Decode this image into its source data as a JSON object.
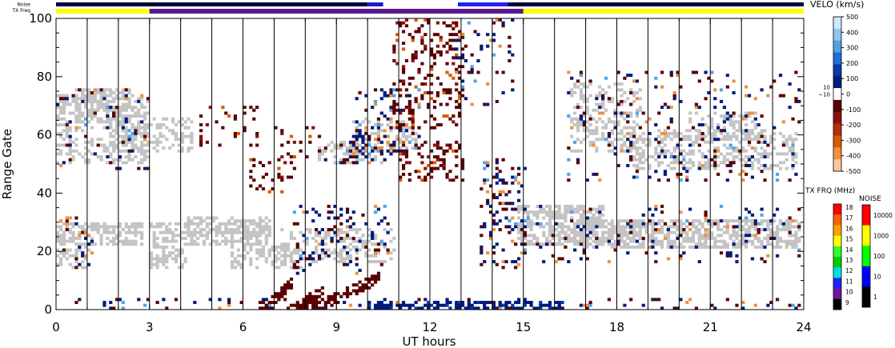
{
  "chart_data": {
    "type": "heatmap",
    "xlabel": "UT hours",
    "ylabel": "Range Gate",
    "xlim": [
      0,
      24
    ],
    "ylim": [
      0,
      100
    ],
    "x_ticks": [
      "0",
      "3",
      "6",
      "9",
      "12",
      "15",
      "18",
      "21",
      "24"
    ],
    "y_ticks": [
      "0",
      "20",
      "40",
      "60",
      "80",
      "100"
    ],
    "hour_lines": [
      1,
      2,
      3,
      4,
      5,
      6,
      7,
      8,
      9,
      10,
      11,
      12,
      13,
      14,
      15,
      16,
      17,
      18,
      19,
      20,
      21,
      22,
      23
    ],
    "top_strips": {
      "noise_label": "Noise",
      "txfreq_label": "TX Freq"
    },
    "tx_freq_strip": [
      {
        "start": 0,
        "end": 3,
        "color": "#ffff00"
      },
      {
        "start": 3,
        "end": 15,
        "color": "#5a188c"
      },
      {
        "start": 15,
        "end": 24,
        "color": "#ffff00"
      }
    ],
    "noise_strip": [
      {
        "start": 0,
        "end": 10,
        "color": "#00003c"
      },
      {
        "start": 10,
        "end": 10.5,
        "color": "#1c1cd0"
      },
      {
        "start": 12.9,
        "end": 14.5,
        "color": "#2222ee"
      },
      {
        "start": 14.5,
        "end": 24,
        "color": "#00003c"
      }
    ],
    "ground_scatter_color": "#c4c4c4",
    "ground_scatter_bands": [
      {
        "t0": 0.0,
        "t1": 2.8,
        "g0": 22,
        "g1": 30,
        "density": 0.6
      },
      {
        "t0": 0.0,
        "t1": 1.0,
        "g0": 14,
        "g1": 22,
        "density": 0.35
      },
      {
        "t0": 0.0,
        "t1": 3.0,
        "g0": 50,
        "g1": 74,
        "density": 0.35
      },
      {
        "t0": 0.6,
        "t1": 2.4,
        "g0": 64,
        "g1": 76,
        "density": 0.55
      },
      {
        "t0": 1.6,
        "t1": 4.4,
        "g0": 54,
        "g1": 66,
        "density": 0.35
      },
      {
        "t0": 3.0,
        "t1": 4.2,
        "g0": 14,
        "g1": 30,
        "density": 0.55
      },
      {
        "t0": 4.2,
        "t1": 6.8,
        "g0": 22,
        "g1": 32,
        "density": 0.55
      },
      {
        "t0": 5.6,
        "t1": 7.8,
        "g0": 14,
        "g1": 22,
        "density": 0.4
      },
      {
        "t0": 7.2,
        "t1": 10.8,
        "g0": 16,
        "g1": 28,
        "density": 0.3
      },
      {
        "t0": 8.4,
        "t1": 10.4,
        "g0": 50,
        "g1": 58,
        "density": 0.35
      },
      {
        "t0": 9.5,
        "t1": 11.5,
        "g0": 54,
        "g1": 66,
        "density": 0.3
      },
      {
        "t0": 14.8,
        "t1": 17.6,
        "g0": 22,
        "g1": 36,
        "density": 0.55
      },
      {
        "t0": 16.8,
        "t1": 23.9,
        "g0": 21,
        "g1": 31,
        "density": 0.65
      },
      {
        "t0": 16.5,
        "t1": 18.8,
        "g0": 54,
        "g1": 78,
        "density": 0.35
      },
      {
        "t0": 18.4,
        "t1": 23.8,
        "g0": 48,
        "g1": 62,
        "density": 0.35
      },
      {
        "t0": 20.2,
        "t1": 22.6,
        "g0": 58,
        "g1": 68,
        "density": 0.35
      }
    ],
    "velocity_patches": [
      {
        "t0": 0.0,
        "t1": 1.2,
        "g0": 14,
        "g1": 32,
        "sign": "mixed",
        "density": 0.12
      },
      {
        "t0": 0.0,
        "t1": 3.0,
        "g0": 48,
        "g1": 76,
        "sign": "mixed",
        "density": 0.08
      },
      {
        "t0": 4.6,
        "t1": 6.4,
        "g0": 56,
        "g1": 70,
        "sign": "neg",
        "density": 0.12
      },
      {
        "t0": 6.0,
        "t1": 7.6,
        "g0": 40,
        "g1": 52,
        "sign": "neg",
        "density": 0.15
      },
      {
        "t0": 7.0,
        "t1": 8.4,
        "g0": 52,
        "g1": 64,
        "sign": "neg",
        "density": 0.12
      },
      {
        "t0": 7.6,
        "t1": 10.6,
        "g0": 12,
        "g1": 36,
        "sign": "mixed",
        "density": 0.14
      },
      {
        "t0": 8.6,
        "t1": 10.8,
        "g0": 50,
        "g1": 60,
        "sign": "mixed",
        "density": 0.2
      },
      {
        "t0": 9.6,
        "t1": 11.6,
        "g0": 54,
        "g1": 76,
        "sign": "mixed",
        "density": 0.2
      },
      {
        "t0": 10.8,
        "t1": 13.0,
        "g0": 62,
        "g1": 100,
        "sign": "neg",
        "density": 0.2
      },
      {
        "t0": 11.0,
        "t1": 13.0,
        "g0": 44,
        "g1": 58,
        "sign": "neg",
        "density": 0.25
      },
      {
        "t0": 12.8,
        "t1": 14.6,
        "g0": 70,
        "g1": 100,
        "sign": "mixed",
        "density": 0.1
      },
      {
        "t0": 13.6,
        "t1": 15.0,
        "g0": 14,
        "g1": 52,
        "sign": "mixed",
        "density": 0.22
      },
      {
        "t0": 15.0,
        "t1": 23.9,
        "g0": 16,
        "g1": 36,
        "sign": "mixed",
        "density": 0.08
      },
      {
        "t0": 16.4,
        "t1": 23.9,
        "g0": 44,
        "g1": 82,
        "sign": "mixed",
        "density": 0.08
      },
      {
        "t0": 0.0,
        "t1": 23.9,
        "g0": 0,
        "g1": 4,
        "sign": "mixed",
        "density": 0.12
      },
      {
        "t0": 10.0,
        "t1": 16.2,
        "g0": 0,
        "g1": 3,
        "sign": "pos",
        "density": 0.55
      }
    ],
    "low_gate_echo_streaks": [
      {
        "t0": 6.5,
        "t1": 7.6,
        "g0": 0,
        "g1": 10
      },
      {
        "t0": 7.4,
        "t1": 8.6,
        "g0": 0,
        "g1": 8
      },
      {
        "t0": 7.8,
        "t1": 10.4,
        "g0": 0,
        "g1": 12
      }
    ],
    "velocity_colorbar": {
      "title": "VELO (km/s)",
      "labels": [
        "500",
        "400",
        "300",
        "200",
        "100",
        "0",
        "-100",
        "-200",
        "-300",
        "-400",
        "-500"
      ],
      "side_labels": [
        "10",
        "−10"
      ],
      "colors": [
        "#cfe8f8",
        "#8ec8f0",
        "#4fa4e8",
        "#1f6ed8",
        "#0a3aa8",
        "#001a7a",
        "#ffffff",
        "#5a0000",
        "#8c1010",
        "#b83000",
        "#dc5a00",
        "#f09040",
        "#f8c898"
      ]
    },
    "txfreq_colorbar": {
      "title": "TX FRQ (MHz)",
      "labels": [
        "18",
        "17",
        "16",
        "15",
        "14",
        "13",
        "12",
        "11",
        "10",
        "9"
      ],
      "colors": [
        "#ff0000",
        "#ff6000",
        "#ffa000",
        "#ffff00",
        "#30ff30",
        "#00d000",
        "#00e0e0",
        "#2020ff",
        "#6a1a9a",
        "#000000"
      ]
    },
    "noise_colorbar": {
      "title": "NOISE",
      "labels": [
        "10000",
        "1000",
        "100",
        "10",
        "1"
      ],
      "colors": [
        "#ff0000",
        "#ffff00",
        "#00ff00",
        "#0000ff",
        "#000000"
      ]
    }
  }
}
